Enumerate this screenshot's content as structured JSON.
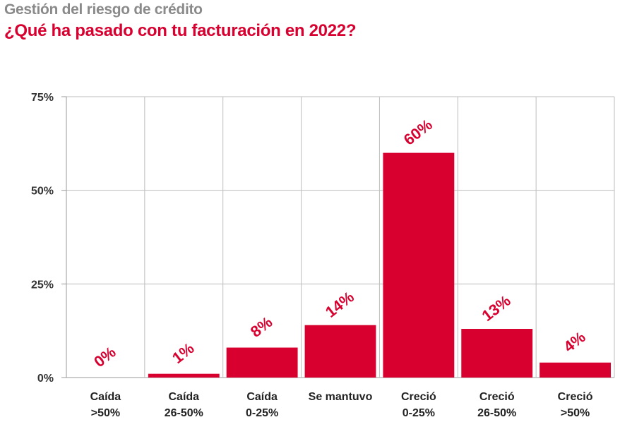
{
  "header": {
    "supertitle": "Gestión del riesgo de crédito",
    "title": "¿Qué ha pasado con tu facturación en 2022?"
  },
  "colors": {
    "bar": "#d7002f",
    "title": "#d7002f",
    "supertitle": "#8a8a8a",
    "grid": "#bdbdbd"
  },
  "chart_data": {
    "type": "bar",
    "title": "¿Qué ha pasado con tu facturación en 2022?",
    "categories": [
      [
        "Caída",
        ">50%"
      ],
      [
        "Caída",
        "26-50%"
      ],
      [
        "Caída",
        "0-25%"
      ],
      [
        "Se mantuvo"
      ],
      [
        "Creció",
        "0-25%"
      ],
      [
        "Creció",
        "26-50%"
      ],
      [
        "Creció",
        ">50%"
      ]
    ],
    "values": [
      0,
      1,
      8,
      14,
      60,
      13,
      4
    ],
    "data_labels": [
      "0%",
      "1%",
      "8%",
      "14%",
      "60%",
      "13%",
      "4%"
    ],
    "yticks": [
      0,
      25,
      50,
      75
    ],
    "ytick_labels": [
      "0%",
      "25%",
      "50%",
      "75%"
    ],
    "ylim": [
      0,
      75
    ],
    "grid": true,
    "legend": "none"
  }
}
